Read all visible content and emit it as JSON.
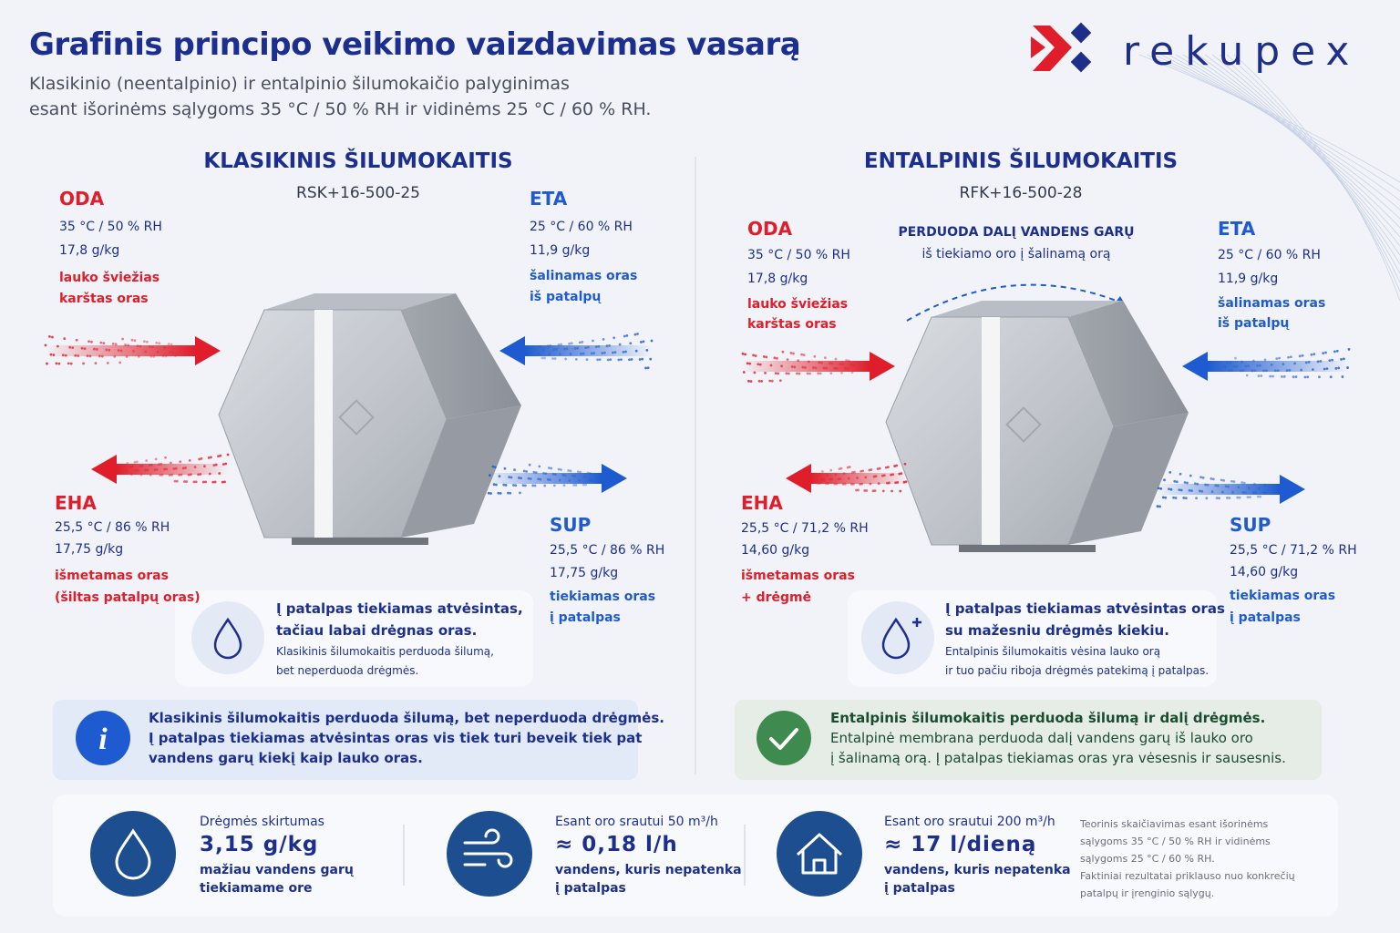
{
  "header": {
    "title": "Grafinis principo veikimo vaizdavimas vasarą",
    "subtitle": [
      "Klasikinio (neentalpinio) ir entalpinio šilumokaičio palyginimas",
      "esant išorinėms sąlygoms 35 °C / 50 % RH ir vidinėms 25 °C / 60 % RH."
    ],
    "brand": "rekupex"
  },
  "panels": [
    {
      "title": "KLASIKINIS ŠILUMOKAITIS",
      "model": "RSK+16-500-25",
      "oda": {
        "label": "ODA",
        "lines": [
          "35 °C / 50 % RH",
          "17,8 g/kg"
        ],
        "desc": [
          "lauko šviežias",
          "karštas oras"
        ]
      },
      "eta": {
        "label": "ETA",
        "lines": [
          "25 °C / 60 % RH",
          "11,9 g/kg"
        ],
        "desc": [
          "šalinamas oras",
          "iš patalpų"
        ]
      },
      "eha": {
        "label": "EHA",
        "lines": [
          "25,5 °C / 86 % RH",
          "17,75 g/kg"
        ],
        "desc": [
          "išmetamas oras",
          "(šiltas patalpų oras)"
        ]
      },
      "sup": {
        "label": "SUP",
        "lines": [
          "25,5 °C / 86 % RH",
          "17,75 g/kg"
        ],
        "desc": [
          "tiekiamas oras",
          "į patalpas"
        ]
      },
      "note": {
        "title": [
          "Į patalpas tiekiamas atvėsintas,",
          "tačiau labai drėgnas oras."
        ],
        "body": [
          "Klasikinis šilumokaitis perduoda šilumą,",
          "bet neperduoda drėgmės."
        ]
      },
      "info": {
        "title": "Klasikinis šilumokaitis perduoda šilumą, bet neperduoda drėgmės.",
        "body": [
          "Į patalpas tiekiamas atvėsintas oras vis tiek turi beveik tiek pat",
          "vandens garų kiekį kaip lauko oras."
        ]
      }
    },
    {
      "title": "ENTALPINIS ŠILUMOKAITIS",
      "model": "RFK+16-500-28",
      "transfer": {
        "title": "PERDUODA DALĮ VANDENS GARŲ",
        "subtitle": "iš tiekiamo oro į šalinamą orą"
      },
      "oda": {
        "label": "ODA",
        "lines": [
          "35 °C / 50 % RH",
          "17,8 g/kg"
        ],
        "desc": [
          "lauko šviežias",
          "karštas oras"
        ]
      },
      "eta": {
        "label": "ETA",
        "lines": [
          "25 °C / 60 % RH",
          "11,9 g/kg"
        ],
        "desc": [
          "šalinamas oras",
          "iš patalpų"
        ]
      },
      "eha": {
        "label": "EHA",
        "lines": [
          "25,5 °C / 71,2 % RH",
          "14,60 g/kg"
        ],
        "desc": [
          "išmetamas oras",
          "+ drėgmė"
        ]
      },
      "sup": {
        "label": "SUP",
        "lines": [
          "25,5 °C / 71,2 % RH",
          "14,60 g/kg"
        ],
        "desc": [
          "tiekiamas oras",
          "į patalpas"
        ]
      },
      "note": {
        "title": [
          "Į patalpas tiekiamas atvėsintas oras",
          "su mažesniu drėgmės kiekiu."
        ],
        "body": [
          "Entalpinis šilumokaitis vėsina lauko orą",
          "ir tuo pačiu riboja drėgmės patekimą į patalpas."
        ]
      },
      "info": {
        "title": "Entalpinis šilumokaitis perduoda šilumą ir dalį drėgmės.",
        "body": [
          "Entalpinė membrana perduoda dalį vandens garų iš lauko oro",
          "į šalinamą orą. Į patalpas tiekiamas oras yra vėsesnis ir sausesnis."
        ]
      }
    }
  ],
  "stats": {
    "items": [
      {
        "label": "Drėgmės skirtumas",
        "value": "3,15 g/kg",
        "desc": [
          "mažiau vandens garų",
          "tiekiamame ore"
        ]
      },
      {
        "label": "Esant oro srautui 50 m³/h",
        "value": "≈ 0,18 l/h",
        "desc": [
          "vandens, kuris nepatenka",
          "į patalpas"
        ]
      },
      {
        "label": "Esant oro srautui 200 m³/h",
        "value": "≈ 17 l/dieną",
        "desc": [
          "vandens, kuris nepatenka",
          "į patalpas"
        ]
      }
    ],
    "footnote": [
      "Teorinis skaičiavimas esant išorinėms",
      "sąlygoms 35 °C / 50 % RH ir vidinėms",
      "sąlygoms 25 °C / 60 % RH.",
      "Faktiniai rezultatai priklauso nuo konkrečių",
      "patalpų ir įrenginio sąlygų."
    ]
  }
}
